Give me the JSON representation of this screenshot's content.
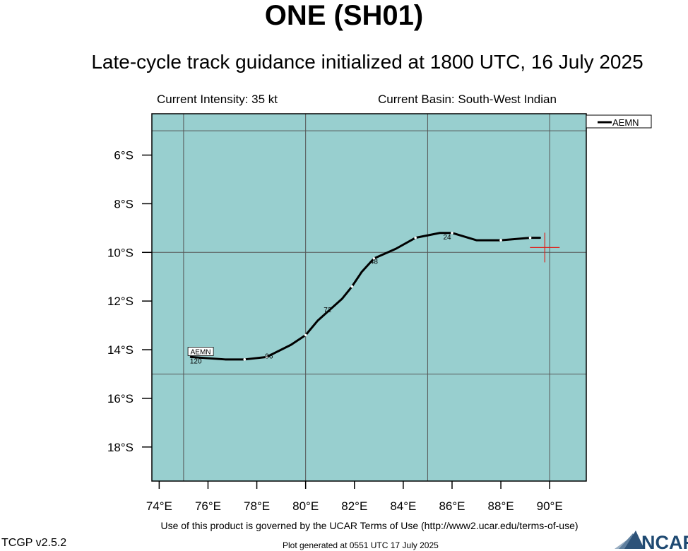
{
  "header": {
    "title": "ONE (SH01)",
    "subtitle": "Late-cycle track guidance initialized at 1800 UTC, 16 July 2025"
  },
  "info": {
    "intensity": "Current Intensity: 35 kt",
    "basin": "Current Basin: South-West Indian"
  },
  "footer": {
    "terms": "Use of this product is governed by the UCAR Terms of Use (http://www2.ucar.edu/terms-of-use)",
    "version": "TCGP v2.5.2",
    "generated": "Plot generated at 0551 UTC   17 July 2025",
    "logo_text": "NCAR"
  },
  "colors": {
    "ocean": "#98cfcf",
    "track": "#000000",
    "grid": "#555555",
    "current_position": "#e0201a"
  },
  "chart_data": {
    "type": "line",
    "xlim": [
      73.7,
      91.5
    ],
    "ylim": [
      -19.4,
      -4.3
    ],
    "x_ticks": [
      74,
      76,
      78,
      80,
      82,
      84,
      86,
      88,
      90
    ],
    "x_tick_labels": [
      "74°E",
      "76°E",
      "78°E",
      "80°E",
      "82°E",
      "84°E",
      "86°E",
      "88°E",
      "90°E"
    ],
    "y_ticks": [
      -6,
      -8,
      -10,
      -12,
      -14,
      -16,
      -18
    ],
    "y_tick_labels": [
      "6°S",
      "8°S",
      "10°S",
      "12°S",
      "14°S",
      "16°S",
      "18°S"
    ],
    "grid_lon": [
      75,
      80,
      85,
      90
    ],
    "grid_lat": [
      -5,
      -10,
      -15
    ],
    "grid": true,
    "legend": {
      "position": "top-right",
      "entries": [
        "AEMN"
      ]
    },
    "current_position": {
      "lon": 89.8,
      "lat": -9.8
    },
    "series": [
      {
        "name": "AEMN",
        "points": [
          [
            89.6,
            -9.4
          ],
          [
            89.2,
            -9.4
          ],
          [
            88.0,
            -9.5
          ],
          [
            87.0,
            -9.5
          ],
          [
            86.0,
            -9.2
          ],
          [
            85.5,
            -9.2
          ],
          [
            84.5,
            -9.4
          ],
          [
            83.7,
            -9.85
          ],
          [
            82.8,
            -10.25
          ],
          [
            82.3,
            -10.8
          ],
          [
            81.9,
            -11.4
          ],
          [
            81.5,
            -11.9
          ],
          [
            80.5,
            -12.8
          ],
          [
            80.0,
            -13.4
          ],
          [
            79.4,
            -13.8
          ],
          [
            78.4,
            -14.3
          ],
          [
            77.5,
            -14.4
          ],
          [
            76.7,
            -14.4
          ],
          [
            75.3,
            -14.3
          ]
        ],
        "markers": [
          [
            89.2,
            -9.4
          ],
          [
            88.0,
            -9.5
          ],
          [
            86.0,
            -9.2
          ],
          [
            84.5,
            -9.4
          ],
          [
            82.8,
            -10.25
          ],
          [
            81.9,
            -11.4
          ],
          [
            80.0,
            -13.4
          ],
          [
            78.4,
            -14.3
          ],
          [
            77.5,
            -14.4
          ]
        ],
        "hour_labels": [
          {
            "text": "24",
            "lon": 85.8,
            "lat": -9.35
          },
          {
            "text": "48",
            "lon": 82.8,
            "lat": -10.35
          },
          {
            "text": "72",
            "lon": 80.9,
            "lat": -12.35
          },
          {
            "text": "96",
            "lon": 78.5,
            "lat": -14.25
          },
          {
            "text": "120",
            "lon": 75.5,
            "lat": -14.45
          }
        ],
        "end_label": {
          "text": "AEMN",
          "lon": 75.7,
          "lat": -14.1
        }
      }
    ]
  }
}
